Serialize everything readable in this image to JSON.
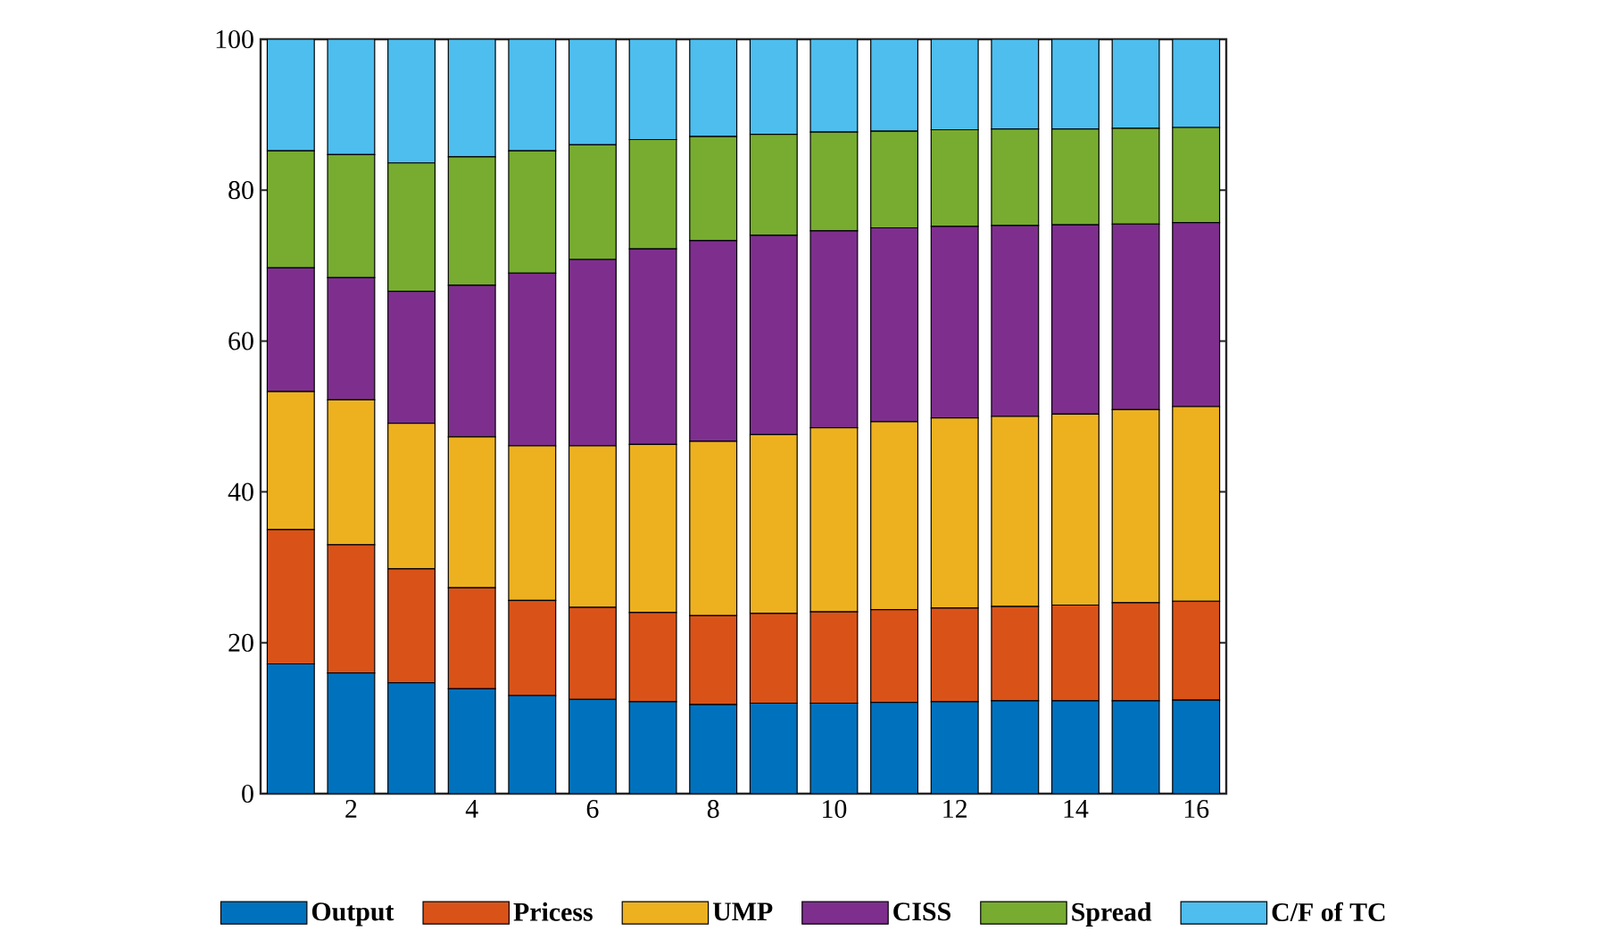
{
  "chart_data": {
    "type": "bar",
    "stacked": true,
    "x": [
      1,
      2,
      3,
      4,
      5,
      6,
      7,
      8,
      9,
      10,
      11,
      12,
      13,
      14,
      15,
      16
    ],
    "xlim": [
      0.5,
      16.5
    ],
    "xticks": [
      2,
      4,
      6,
      8,
      10,
      12,
      14,
      16
    ],
    "ylim": [
      0,
      100
    ],
    "yticks": [
      0,
      20,
      40,
      60,
      80,
      100
    ],
    "legend": "bottom",
    "series": [
      {
        "name": "Output",
        "color": "#0072bd",
        "values": [
          17.2,
          16,
          14.7,
          13.9,
          13,
          12.5,
          12.2,
          11.8,
          12,
          12,
          12.1,
          12.2,
          12.3,
          12.3,
          12.3,
          12.4
        ]
      },
      {
        "name": "Pricess",
        "color": "#d95319",
        "values": [
          17.8,
          17,
          15.1,
          13.4,
          12.6,
          12.2,
          11.8,
          11.8,
          11.9,
          12.1,
          12.3,
          12.4,
          12.5,
          12.7,
          13,
          13.1
        ]
      },
      {
        "name": "UMP",
        "color": "#edb120",
        "values": [
          18.3,
          19.2,
          19.3,
          20,
          20.5,
          21.4,
          22.3,
          23.1,
          23.7,
          24.4,
          24.9,
          25.2,
          25.2,
          25.3,
          25.6,
          25.8
        ]
      },
      {
        "name": "CISS",
        "color": "#7e2f8e",
        "values": [
          16.4,
          16.2,
          17.5,
          20.1,
          22.9,
          24.7,
          25.9,
          26.6,
          26.4,
          26.1,
          25.7,
          25.4,
          25.3,
          25.1,
          24.6,
          24.4
        ]
      },
      {
        "name": "Spread",
        "color": "#77ac30",
        "values": [
          15.5,
          16.3,
          17,
          17,
          16.2,
          15.2,
          14.5,
          13.8,
          13.4,
          13.1,
          12.8,
          12.8,
          12.8,
          12.7,
          12.7,
          12.6
        ]
      },
      {
        "name": "C/F of TC",
        "color": "#4dbeee",
        "values": [
          14.8,
          15.3,
          16.4,
          15.6,
          14.8,
          14,
          13.3,
          12.9,
          12.6,
          12.3,
          12.2,
          12,
          11.9,
          11.9,
          11.8,
          11.7
        ]
      }
    ]
  }
}
